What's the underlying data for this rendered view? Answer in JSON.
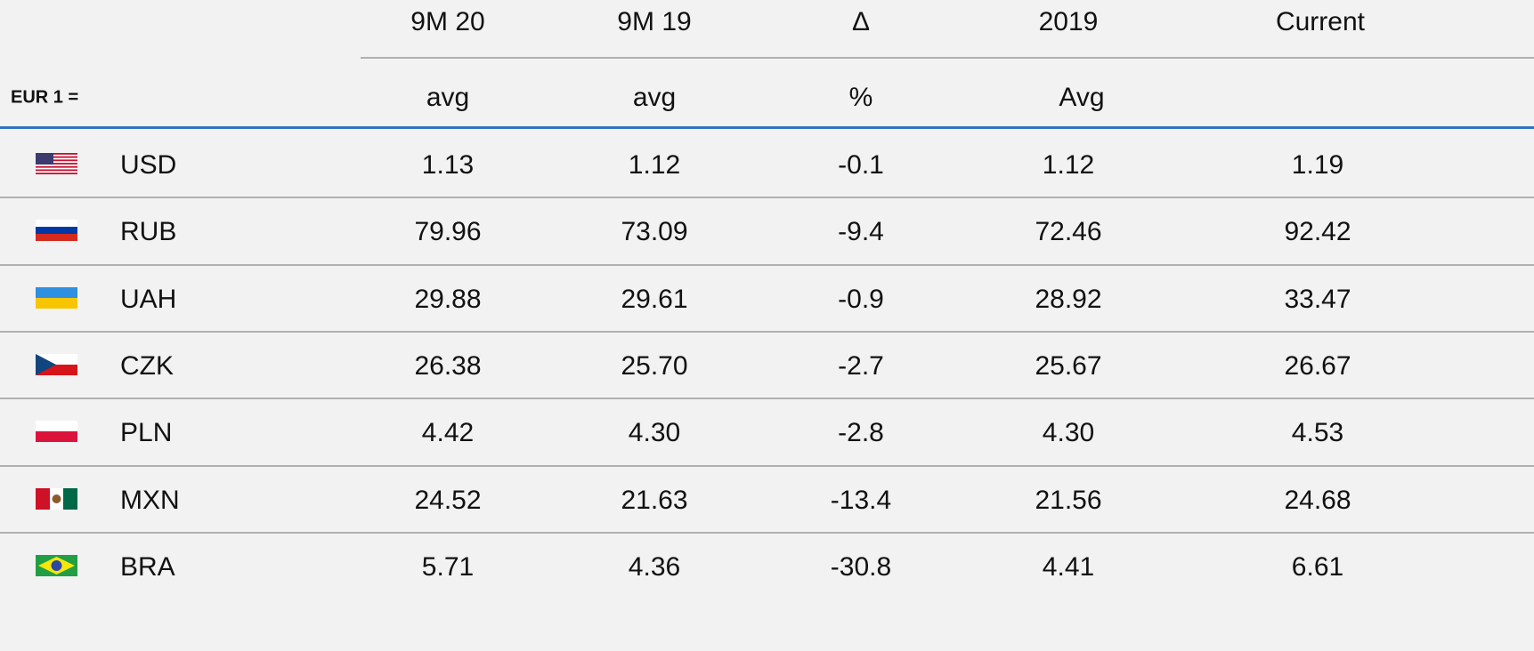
{
  "table": {
    "columns": [
      "9M 20",
      "9M 19",
      "Δ",
      "2019",
      "Current"
    ],
    "row_header_label": "EUR 1 =",
    "subheaders": [
      "avg",
      "avg",
      "%",
      "Avg"
    ],
    "rows": [
      [
        "USD",
        "1.13",
        "1.12",
        "-0.1",
        "1.12",
        "1.19"
      ],
      [
        "RUB",
        "79.96",
        "73.09",
        "-9.4",
        "72.46",
        "92.42"
      ],
      [
        "UAH",
        "29.88",
        "29.61",
        "-0.9",
        "28.92",
        "33.47"
      ],
      [
        "CZK",
        "26.38",
        "25.70",
        "-2.7",
        "25.67",
        "26.67"
      ],
      [
        "PLN",
        "4.42",
        "4.30",
        "-2.8",
        "4.30",
        "4.53"
      ],
      [
        "MXN",
        "24.52",
        "21.63",
        "-13.4",
        "21.56",
        "24.68"
      ],
      [
        "BRA",
        "5.71",
        "4.36",
        "-30.8",
        "4.41",
        "6.61"
      ]
    ]
  }
}
